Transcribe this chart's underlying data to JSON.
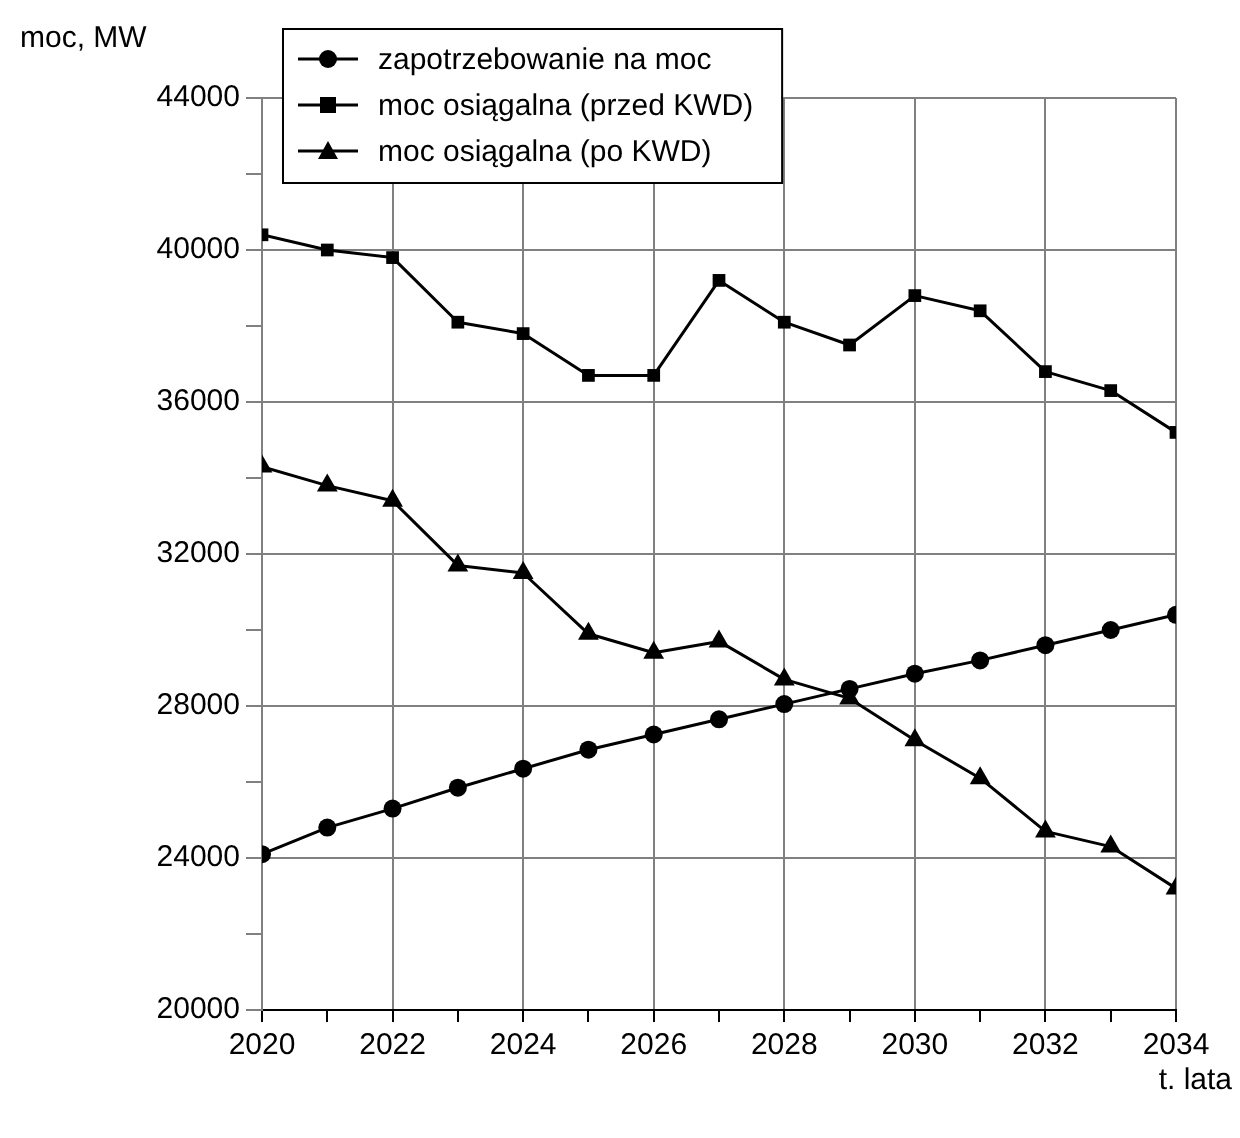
{
  "chart_data": {
    "type": "line",
    "xlabel": "t. lata",
    "ylabel": "moc, MW",
    "x": [
      2020,
      2021,
      2022,
      2023,
      2024,
      2025,
      2026,
      2027,
      2028,
      2029,
      2030,
      2031,
      2032,
      2033,
      2034
    ],
    "series": [
      {
        "name": "zapotrzebowanie na moc",
        "color": "#000000",
        "marker": "circle",
        "values": [
          24100,
          24800,
          25300,
          25850,
          26350,
          26850,
          27250,
          27650,
          28050,
          28450,
          28850,
          29200,
          29600,
          30000,
          30400
        ]
      },
      {
        "name": "moc osiągalna (przed KWD)",
        "color": "#000000",
        "marker": "square",
        "values": [
          40400,
          40000,
          39800,
          38100,
          37800,
          36700,
          36700,
          39200,
          38100,
          37500,
          38800,
          38400,
          36800,
          36300,
          35200
        ]
      },
      {
        "name": "moc osiągalna (po KWD)",
        "color": "#000000",
        "marker": "triangle",
        "values": [
          34300,
          33800,
          33400,
          31700,
          31500,
          29900,
          29400,
          29700,
          28700,
          28200,
          27100,
          26100,
          24700,
          24300,
          23200
        ]
      }
    ],
    "xlim": [
      2020,
      2034
    ],
    "xticks": [
      2020,
      {
        "value": 2021,
        "label": null
      },
      2022,
      {
        "value": 2023,
        "label": null
      },
      2024,
      {
        "value": 2025,
        "label": null
      },
      2026,
      {
        "value": 2027,
        "label": null
      },
      2028,
      {
        "value": 2029,
        "label": null
      },
      2030,
      {
        "value": 2031,
        "label": null
      },
      2032,
      {
        "value": 2033,
        "label": null
      },
      2034
    ],
    "ylim": [
      20000,
      44000
    ],
    "yticks": [
      20000,
      {
        "value": 22000,
        "label": null
      },
      24000,
      {
        "value": 26000,
        "label": null
      },
      28000,
      {
        "value": 30000,
        "label": null
      },
      32000,
      {
        "value": 34000,
        "label": null
      },
      36000,
      {
        "value": 38000,
        "label": null
      },
      40000,
      {
        "value": 42000,
        "label": null
      },
      44000
    ],
    "grid": true,
    "legend": "top left",
    "line_style": "solid"
  }
}
